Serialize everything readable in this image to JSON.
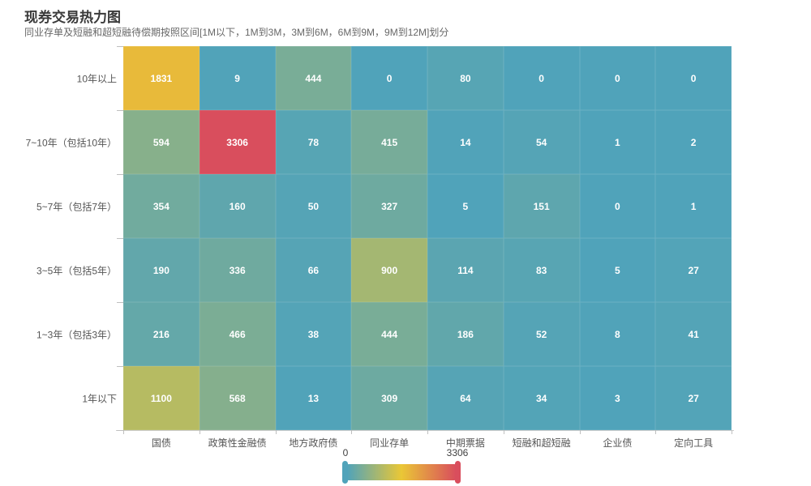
{
  "title": "现券交易热力图",
  "subtitle": "同业存单及短融和超短融待偿期按照区间[1M以下，1M到3M，3M到6M，6M到9M，9M到12M]划分",
  "chart_data": {
    "type": "heatmap",
    "title": "现券交易热力图",
    "subtitle": "同业存单及短融和超短融待偿期按照区间[1M以下，1M到3M，3M到6M，6M到9M，9M到12M]划分",
    "x_categories": [
      "国债",
      "政策性金融债",
      "地方政府债",
      "同业存单",
      "中期票据",
      "短融和超短融",
      "企业债",
      "定向工具"
    ],
    "y_categories_top_to_bottom": [
      "10年以上",
      "7~10年（包括10年）",
      "5~7年（包括7年）",
      "3~5年（包括5年）",
      "1~3年（包括3年）",
      "1年以下"
    ],
    "rows_top_to_bottom": [
      [
        1831,
        9,
        444,
        0,
        80,
        0,
        0,
        0
      ],
      [
        594,
        3306,
        78,
        415,
        14,
        54,
        1,
        2
      ],
      [
        354,
        160,
        50,
        327,
        5,
        151,
        0,
        1
      ],
      [
        190,
        336,
        66,
        900,
        114,
        83,
        5,
        27
      ],
      [
        216,
        466,
        38,
        444,
        186,
        52,
        8,
        41
      ],
      [
        1100,
        568,
        13,
        309,
        64,
        34,
        3,
        27
      ]
    ],
    "grid": "off",
    "legend_position": "bottom-center",
    "visual_map": {
      "min": 0,
      "max": 3306,
      "min_label": "0",
      "max_label": "3306",
      "colors": [
        "#50a3ba",
        "#eac736",
        "#d94e5d"
      ]
    }
  }
}
